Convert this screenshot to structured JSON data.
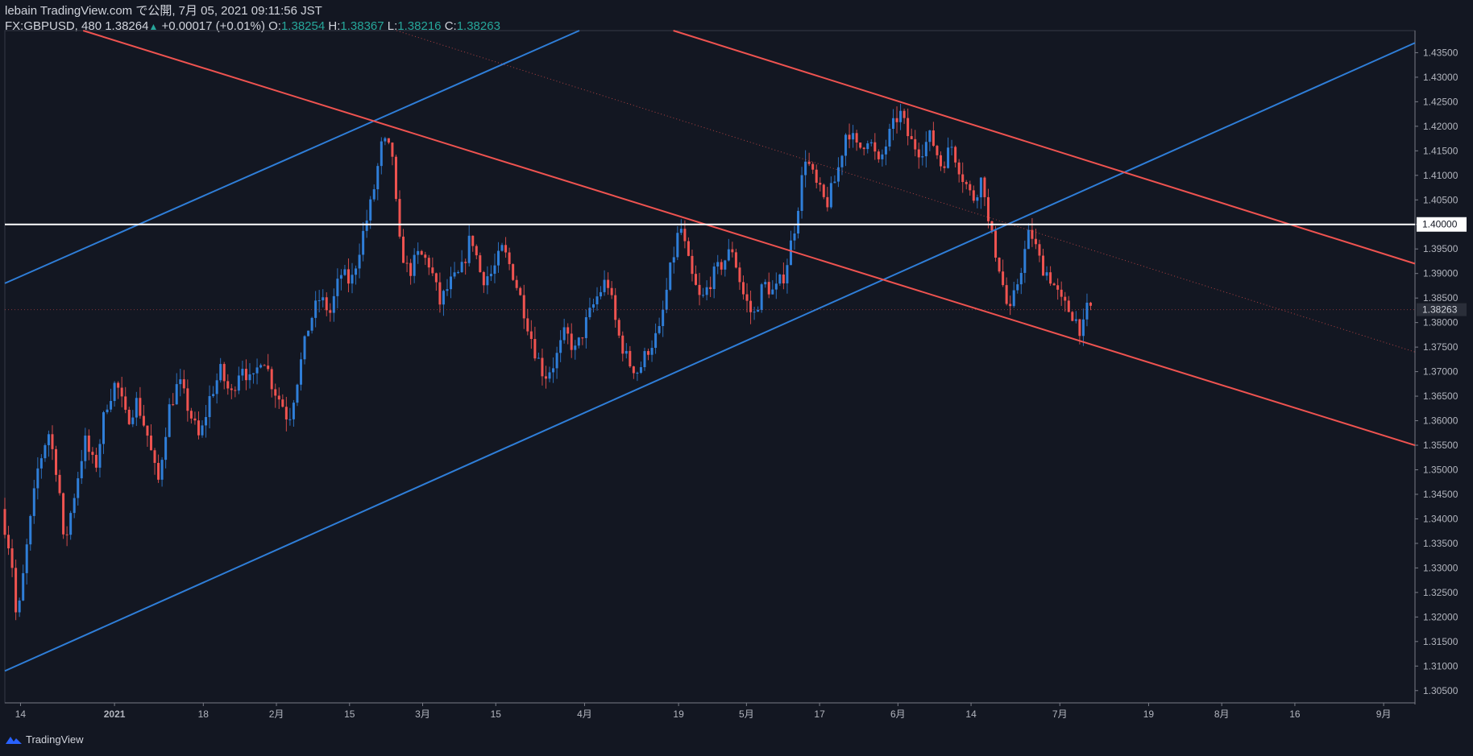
{
  "header": {
    "publisher": "lebain TradingView.com で公開, 7月 05, 2021 09:11:56 JST",
    "symbol": "FX:GBPUSD, 480",
    "last": "1.38264",
    "change": "+0.00017 (+0.01%)",
    "o_label": "O:",
    "o": "1.38254",
    "h_label": "H:",
    "h": "1.38367",
    "l_label": "L:",
    "l": "1.38216",
    "c_label": "C:",
    "c": "1.38263"
  },
  "footer": {
    "brand": "TradingView"
  },
  "colors": {
    "bg": "#131722",
    "up": "#2f7ed8",
    "down": "#ef5350",
    "blue_line": "#2f7ed8",
    "red_line": "#ef5350",
    "white_line": "#ffffff",
    "axis_text": "#b2b5be"
  },
  "chart_data": {
    "type": "candlestick",
    "symbol": "FX:GBPUSD",
    "interval": "480",
    "ylim": [
      1.3025,
      1.4395
    ],
    "y_ticks": [
      1.305,
      1.31,
      1.315,
      1.32,
      1.325,
      1.33,
      1.335,
      1.34,
      1.345,
      1.35,
      1.355,
      1.36,
      1.365,
      1.37,
      1.375,
      1.38,
      1.385,
      1.39,
      1.395,
      1.4,
      1.405,
      1.41,
      1.415,
      1.42,
      1.425,
      1.43,
      1.435
    ],
    "y_tick_labels": [
      "1.30500",
      "1.31000",
      "1.31500",
      "1.32000",
      "1.32500",
      "1.33000",
      "1.33500",
      "1.34000",
      "1.34500",
      "1.35000",
      "1.35500",
      "1.36000",
      "1.36500",
      "1.37000",
      "1.37500",
      "1.38000",
      "1.38500",
      "1.39000",
      "1.39500",
      "1.40000",
      "1.40500",
      "1.41000",
      "1.41500",
      "1.42000",
      "1.42500",
      "1.43000",
      "1.43500"
    ],
    "x_range_days": [
      0,
      270
    ],
    "x_ticks": [
      {
        "day": 3,
        "label": "14"
      },
      {
        "day": 21,
        "label": "2021"
      },
      {
        "day": 38,
        "label": "18"
      },
      {
        "day": 52,
        "label": "2月"
      },
      {
        "day": 66,
        "label": "15"
      },
      {
        "day": 80,
        "label": "3月"
      },
      {
        "day": 94,
        "label": "15"
      },
      {
        "day": 111,
        "label": "4月"
      },
      {
        "day": 129,
        "label": "19"
      },
      {
        "day": 142,
        "label": "5月"
      },
      {
        "day": 156,
        "label": "17"
      },
      {
        "day": 171,
        "label": "6月"
      },
      {
        "day": 185,
        "label": "14"
      },
      {
        "day": 202,
        "label": "7月"
      },
      {
        "day": 219,
        "label": "19"
      },
      {
        "day": 233,
        "label": "8月"
      },
      {
        "day": 247,
        "label": "16"
      },
      {
        "day": 264,
        "label": "9月"
      }
    ],
    "price_path": [
      [
        0,
        1.342
      ],
      [
        2,
        1.332
      ],
      [
        3,
        1.318
      ],
      [
        5,
        1.335
      ],
      [
        7,
        1.35
      ],
      [
        9,
        1.358
      ],
      [
        11,
        1.348
      ],
      [
        12,
        1.334
      ],
      [
        14,
        1.345
      ],
      [
        16,
        1.356
      ],
      [
        18,
        1.35
      ],
      [
        20,
        1.363
      ],
      [
        22,
        1.368
      ],
      [
        24,
        1.36
      ],
      [
        26,
        1.364
      ],
      [
        28,
        1.357
      ],
      [
        30,
        1.347
      ],
      [
        32,
        1.362
      ],
      [
        34,
        1.368
      ],
      [
        36,
        1.362
      ],
      [
        38,
        1.356
      ],
      [
        40,
        1.365
      ],
      [
        42,
        1.37
      ],
      [
        44,
        1.365
      ],
      [
        46,
        1.372
      ],
      [
        48,
        1.367
      ],
      [
        50,
        1.374
      ],
      [
        52,
        1.367
      ],
      [
        54,
        1.363
      ],
      [
        55,
        1.36
      ],
      [
        57,
        1.37
      ],
      [
        59,
        1.38
      ],
      [
        61,
        1.385
      ],
      [
        63,
        1.382
      ],
      [
        65,
        1.39
      ],
      [
        67,
        1.388
      ],
      [
        69,
        1.397
      ],
      [
        71,
        1.405
      ],
      [
        73,
        1.417
      ],
      [
        75,
        1.414
      ],
      [
        76,
        1.397
      ],
      [
        78,
        1.39
      ],
      [
        80,
        1.394
      ],
      [
        82,
        1.392
      ],
      [
        84,
        1.384
      ],
      [
        86,
        1.388
      ],
      [
        88,
        1.39
      ],
      [
        90,
        1.398
      ],
      [
        92,
        1.389
      ],
      [
        94,
        1.39
      ],
      [
        96,
        1.395
      ],
      [
        98,
        1.39
      ],
      [
        100,
        1.383
      ],
      [
        102,
        1.375
      ],
      [
        104,
        1.369
      ],
      [
        106,
        1.372
      ],
      [
        108,
        1.378
      ],
      [
        110,
        1.374
      ],
      [
        112,
        1.38
      ],
      [
        114,
        1.385
      ],
      [
        116,
        1.389
      ],
      [
        118,
        1.378
      ],
      [
        120,
        1.372
      ],
      [
        122,
        1.37
      ],
      [
        124,
        1.375
      ],
      [
        126,
        1.378
      ],
      [
        128,
        1.39
      ],
      [
        130,
        1.4
      ],
      [
        132,
        1.39
      ],
      [
        134,
        1.384
      ],
      [
        136,
        1.389
      ],
      [
        138,
        1.392
      ],
      [
        140,
        1.395
      ],
      [
        142,
        1.386
      ],
      [
        144,
        1.381
      ],
      [
        146,
        1.388
      ],
      [
        148,
        1.386
      ],
      [
        150,
        1.39
      ],
      [
        152,
        1.4
      ],
      [
        154,
        1.414
      ],
      [
        156,
        1.408
      ],
      [
        158,
        1.404
      ],
      [
        160,
        1.41
      ],
      [
        162,
        1.42
      ],
      [
        164,
        1.415
      ],
      [
        166,
        1.418
      ],
      [
        168,
        1.412
      ],
      [
        170,
        1.418
      ],
      [
        172,
        1.423
      ],
      [
        174,
        1.417
      ],
      [
        176,
        1.415
      ],
      [
        178,
        1.418
      ],
      [
        180,
        1.412
      ],
      [
        182,
        1.416
      ],
      [
        184,
        1.41
      ],
      [
        186,
        1.405
      ],
      [
        188,
        1.41
      ],
      [
        189,
        1.4
      ],
      [
        191,
        1.392
      ],
      [
        193,
        1.381
      ],
      [
        195,
        1.39
      ],
      [
        197,
        1.399
      ],
      [
        199,
        1.392
      ],
      [
        201,
        1.389
      ],
      [
        203,
        1.384
      ],
      [
        205,
        1.382
      ],
      [
        207,
        1.378
      ],
      [
        208,
        1.383
      ]
    ],
    "trend_lines": [
      {
        "name": "upper-blue-channel",
        "color": "blue",
        "from": [
          0,
          1.388
        ],
        "to": [
          110,
          1.4395
        ]
      },
      {
        "name": "lower-blue-channel",
        "color": "blue",
        "from": [
          0,
          1.309
        ],
        "to": [
          270,
          1.437
        ]
      },
      {
        "name": "long-red-line",
        "color": "red",
        "from": [
          15,
          1.4395
        ],
        "to": [
          270,
          1.355
        ]
      },
      {
        "name": "upper-red-channel",
        "color": "red",
        "from": [
          128,
          1.4395
        ],
        "to": [
          270,
          1.392
        ]
      },
      {
        "name": "red-mid-dotted",
        "color": "red",
        "from": [
          75,
          1.4395
        ],
        "to": [
          270,
          1.374
        ],
        "style": "dotted"
      },
      {
        "name": "support-white-1.40",
        "color": "white",
        "from": [
          0,
          1.4
        ],
        "to": [
          270,
          1.4
        ]
      }
    ],
    "price_label": "1.40000",
    "last_price_label": "1.38263",
    "last_price": 1.38263
  }
}
